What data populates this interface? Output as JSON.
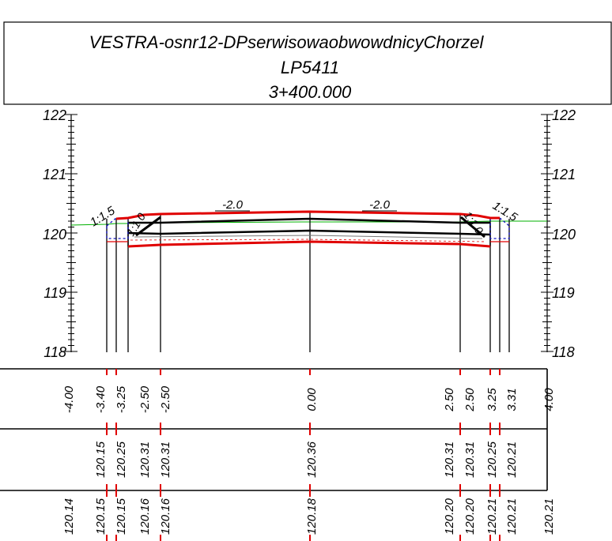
{
  "title": {
    "line1": "VESTRA-osnr12-DPserwisowaobwowdnicyChorzel",
    "line2": "LP5411",
    "line3": "3+400.000"
  },
  "axis": {
    "labels": [
      "122",
      "121",
      "120",
      "119",
      "118"
    ]
  },
  "slopes": {
    "left_outer": "1:1.5",
    "left_inner": "1:1.0",
    "right_inner": "1:1.0",
    "right_outer": "1:1.5"
  },
  "grades": {
    "left": "-2.0",
    "right": "-2.0"
  },
  "offsets": [
    {
      "v": "-4.00"
    },
    {
      "v": "-3.40"
    },
    {
      "v": "-3.25"
    },
    {
      "v": "-2.50"
    },
    {
      "v": "-2.50"
    },
    {
      "v": "0.00"
    },
    {
      "v": "2.50"
    },
    {
      "v": "2.50"
    },
    {
      "v": "3.25"
    },
    {
      "v": "3.31"
    },
    {
      "v": "4.00"
    }
  ],
  "design_elevations": [
    {
      "v": "120.15"
    },
    {
      "v": "120.25"
    },
    {
      "v": "120.31"
    },
    {
      "v": "120.31"
    },
    {
      "v": "120.36"
    },
    {
      "v": "120.31"
    },
    {
      "v": "120.31"
    },
    {
      "v": "120.25"
    },
    {
      "v": "120.21"
    }
  ],
  "ground_elevations": [
    {
      "v": "120.14"
    },
    {
      "v": "120.15"
    },
    {
      "v": "120.15"
    },
    {
      "v": "120.16"
    },
    {
      "v": "120.16"
    },
    {
      "v": "120.18"
    },
    {
      "v": "120.20"
    },
    {
      "v": "120.20"
    },
    {
      "v": "120.21"
    },
    {
      "v": "120.21"
    },
    {
      "v": "120.21"
    }
  ],
  "colors": {
    "pavement": "#e00000",
    "ground": "#00b000",
    "fill": "#1010c0",
    "ink": "#000000"
  }
}
